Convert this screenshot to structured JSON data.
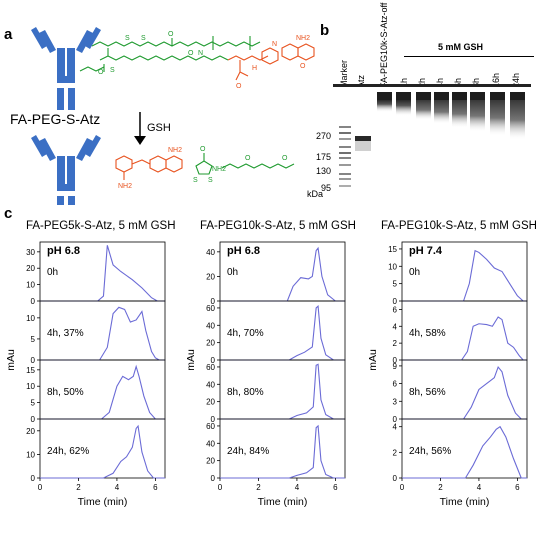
{
  "panel_a": {
    "label": "a",
    "construct_name": "FA-PEG-S-Atz",
    "arrow_label": "GSH",
    "colors": {
      "antibody": "#3b6fc4",
      "peg_linker": "#1f9a2f",
      "folate": "#e8531f"
    },
    "chem_labels": {
      "nh2": "NH2",
      "n": "N",
      "h": "H",
      "o": "O",
      "s": "S"
    },
    "icons": [
      "antibody-icon",
      "peg-linker-structure",
      "folate-structure",
      "reaction-arrow",
      "cleavage-products"
    ]
  },
  "panel_b": {
    "label": "b",
    "gsh_label": "5 mM GSH",
    "lanes": [
      "Marker",
      "Atz",
      "FA-PEG10k-S-Atz-off",
      "1h",
      "2h",
      "4h",
      "6h",
      "8h",
      "16h",
      "24h"
    ],
    "mw_markers": [
      "270",
      "175",
      "130",
      "95"
    ],
    "unit": "kDa"
  },
  "panel_c": {
    "label": "c",
    "ylabel": "mAu",
    "xlabel": "Time (min)",
    "x_ticks": [
      "0",
      "2",
      "4",
      "6"
    ]
  },
  "chart_data": [
    {
      "type": "line",
      "title": "FA-PEG5k-S-Atz, 5 mM GSH",
      "ph": "pH 6.8",
      "xlabel": "Time (min)",
      "ylabel": "mAu",
      "xlim": [
        0,
        6.5
      ],
      "color": "#6b6bd6",
      "traces": [
        {
          "label": "0h",
          "yticks": [
            0,
            10,
            20,
            30
          ],
          "ylim": [
            0,
            36
          ],
          "points": [
            [
              3.0,
              0
            ],
            [
              3.3,
              3
            ],
            [
              3.5,
              34
            ],
            [
              3.6,
              30
            ],
            [
              3.8,
              22
            ],
            [
              4.2,
              18
            ],
            [
              4.8,
              13
            ],
            [
              5.3,
              8
            ],
            [
              5.8,
              2
            ],
            [
              6.1,
              0
            ]
          ]
        },
        {
          "label": "4h, 37%",
          "yticks": [
            0,
            5,
            10
          ],
          "ylim": [
            0,
            14
          ],
          "points": [
            [
              3.1,
              0
            ],
            [
              3.5,
              3
            ],
            [
              3.8,
              11
            ],
            [
              4.1,
              12.5
            ],
            [
              4.4,
              12
            ],
            [
              4.7,
              9
            ],
            [
              5.0,
              9.5
            ],
            [
              5.3,
              11.5
            ],
            [
              5.5,
              7
            ],
            [
              5.8,
              2
            ],
            [
              6.0,
              0.5
            ],
            [
              6.2,
              0
            ]
          ]
        },
        {
          "label": "8h, 50%",
          "yticks": [
            0,
            5,
            10,
            15
          ],
          "ylim": [
            0,
            18
          ],
          "points": [
            [
              3.2,
              0
            ],
            [
              3.6,
              2
            ],
            [
              4.0,
              10
            ],
            [
              4.3,
              13
            ],
            [
              4.6,
              12
            ],
            [
              4.85,
              13
            ],
            [
              5.0,
              16
            ],
            [
              5.15,
              13
            ],
            [
              5.4,
              7
            ],
            [
              5.7,
              2
            ],
            [
              6.0,
              0
            ]
          ]
        },
        {
          "label": "24h, 62%",
          "yticks": [
            0,
            10,
            20
          ],
          "ylim": [
            0,
            25
          ],
          "points": [
            [
              3.3,
              0
            ],
            [
              3.8,
              2
            ],
            [
              4.2,
              7
            ],
            [
              4.5,
              9
            ],
            [
              4.8,
              13
            ],
            [
              5.0,
              21
            ],
            [
              5.1,
              22
            ],
            [
              5.3,
              11
            ],
            [
              5.6,
              3
            ],
            [
              5.9,
              0
            ]
          ]
        }
      ]
    },
    {
      "type": "line",
      "title": "FA-PEG10k-S-Atz, 5 mM GSH",
      "ph": "pH 6.8",
      "xlabel": "Time (min)",
      "ylabel": "mAu",
      "xlim": [
        0,
        6.5
      ],
      "color": "#6b6bd6",
      "traces": [
        {
          "label": "0h",
          "yticks": [
            0,
            20,
            40
          ],
          "ylim": [
            0,
            48
          ],
          "points": [
            [
              3.5,
              0
            ],
            [
              3.8,
              12
            ],
            [
              4.2,
              19
            ],
            [
              4.6,
              18
            ],
            [
              4.8,
              20
            ],
            [
              5.0,
              41
            ],
            [
              5.1,
              43
            ],
            [
              5.3,
              20
            ],
            [
              5.6,
              5
            ],
            [
              6.0,
              0
            ]
          ]
        },
        {
          "label": "4h, 70%",
          "yticks": [
            0,
            20,
            40,
            60
          ],
          "ylim": [
            0,
            68
          ],
          "points": [
            [
              3.6,
              0
            ],
            [
              4.0,
              5
            ],
            [
              4.4,
              9
            ],
            [
              4.8,
              15
            ],
            [
              5.0,
              60
            ],
            [
              5.1,
              62
            ],
            [
              5.25,
              25
            ],
            [
              5.5,
              6
            ],
            [
              5.9,
              0
            ]
          ]
        },
        {
          "label": "8h, 80%",
          "yticks": [
            0,
            20,
            40,
            60
          ],
          "ylim": [
            0,
            68
          ],
          "points": [
            [
              3.6,
              0
            ],
            [
              4.0,
              4
            ],
            [
              4.5,
              7
            ],
            [
              4.85,
              14
            ],
            [
              5.0,
              62
            ],
            [
              5.1,
              63
            ],
            [
              5.25,
              22
            ],
            [
              5.5,
              5
            ],
            [
              5.9,
              0
            ]
          ]
        },
        {
          "label": "24h, 84%",
          "yticks": [
            0,
            20,
            40,
            60
          ],
          "ylim": [
            0,
            68
          ],
          "points": [
            [
              3.6,
              0
            ],
            [
              4.0,
              3
            ],
            [
              4.5,
              6
            ],
            [
              4.85,
              12
            ],
            [
              5.0,
              58
            ],
            [
              5.1,
              60
            ],
            [
              5.25,
              20
            ],
            [
              5.5,
              4
            ],
            [
              5.9,
              0
            ]
          ]
        }
      ]
    },
    {
      "type": "line",
      "title": "FA-PEG10k-S-Atz, 5 mM GSH",
      "ph": "pH 7.4",
      "xlabel": "Time (min)",
      "ylabel": "mAu",
      "xlim": [
        0,
        6.5
      ],
      "color": "#6b6bd6",
      "traces": [
        {
          "label": "0h",
          "yticks": [
            0,
            5,
            10,
            15
          ],
          "ylim": [
            0,
            17
          ],
          "points": [
            [
              3.2,
              0
            ],
            [
              3.5,
              5
            ],
            [
              3.8,
              14.5
            ],
            [
              4.0,
              14
            ],
            [
              4.4,
              12
            ],
            [
              4.8,
              9.5
            ],
            [
              5.2,
              8.5
            ],
            [
              5.6,
              5
            ],
            [
              6.0,
              1.5
            ],
            [
              6.3,
              0
            ]
          ]
        },
        {
          "label": "4h, 58%",
          "yticks": [
            0,
            2,
            4,
            6
          ],
          "ylim": [
            0,
            7
          ],
          "points": [
            [
              3.1,
              0
            ],
            [
              3.4,
              1
            ],
            [
              3.7,
              4
            ],
            [
              4.0,
              4.3
            ],
            [
              4.4,
              4.2
            ],
            [
              4.7,
              4
            ],
            [
              5.0,
              5.1
            ],
            [
              5.2,
              4.8
            ],
            [
              5.5,
              2
            ],
            [
              5.8,
              1.5
            ],
            [
              6.1,
              0.5
            ],
            [
              6.3,
              0
            ]
          ]
        },
        {
          "label": "8h, 56%",
          "yticks": [
            0,
            3,
            6,
            9
          ],
          "ylim": [
            0,
            10
          ],
          "points": [
            [
              3.2,
              0
            ],
            [
              3.6,
              2
            ],
            [
              4.0,
              5
            ],
            [
              4.4,
              6
            ],
            [
              4.8,
              7
            ],
            [
              5.0,
              8.8
            ],
            [
              5.2,
              8
            ],
            [
              5.5,
              4
            ],
            [
              5.9,
              1
            ],
            [
              6.2,
              0
            ]
          ]
        },
        {
          "label": "24h, 56%",
          "yticks": [
            0,
            2,
            4
          ],
          "ylim": [
            0,
            4.6
          ],
          "points": [
            [
              3.3,
              0
            ],
            [
              3.7,
              1
            ],
            [
              4.2,
              2.5
            ],
            [
              4.6,
              3.2
            ],
            [
              4.9,
              3.8
            ],
            [
              5.1,
              4.0
            ],
            [
              5.4,
              3.2
            ],
            [
              5.8,
              1.5
            ],
            [
              6.2,
              0
            ]
          ]
        }
      ]
    }
  ]
}
